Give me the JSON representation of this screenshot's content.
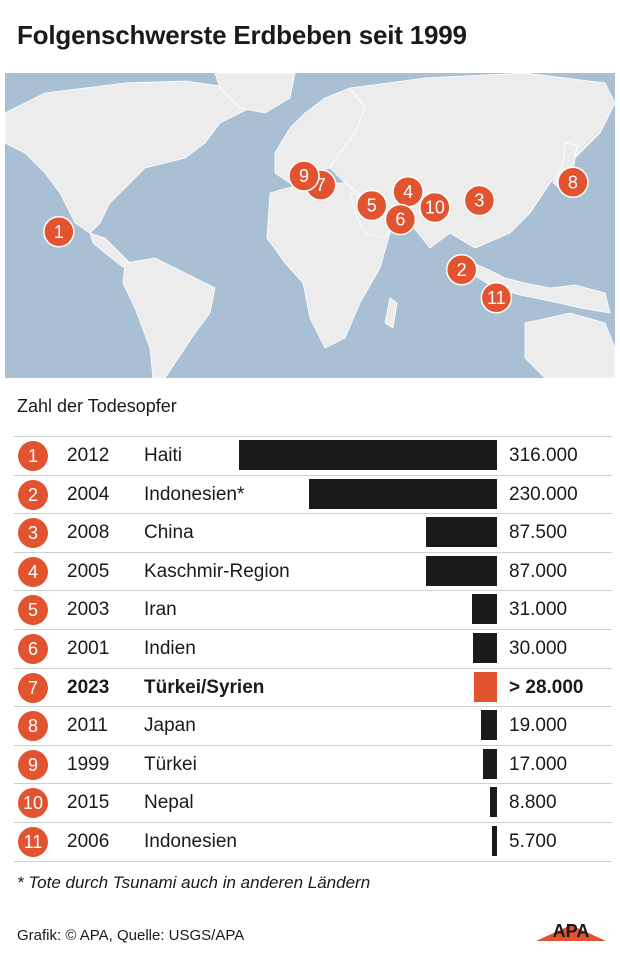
{
  "title": "Folgenschwerste Erdbeben seit 1999",
  "subtitle": "Zahl der Todesopfer",
  "footnote": "* Tote durch Tsunami auch in anderen Ländern",
  "source": "Grafik: © APA, Quelle: USGS/APA",
  "logo_text": "APA",
  "colors": {
    "accent": "#e2532f",
    "bar": "#1a1a1a",
    "ocean": "#a9bfd3",
    "land": "#ececec"
  },
  "chart_data": {
    "type": "bar",
    "orientation": "horizontal",
    "title": "Folgenschwerste Erdbeben seit 1999",
    "subtitle": "Zahl der Todesopfer",
    "xlim": [
      0,
      316000
    ],
    "rows": [
      {
        "rank": "1",
        "year": "2012",
        "name": "Haiti",
        "value": 316000,
        "label": "316.000",
        "highlight": false
      },
      {
        "rank": "2",
        "year": "2004",
        "name": "Indonesien*",
        "value": 230000,
        "label": "230.000",
        "highlight": false
      },
      {
        "rank": "3",
        "year": "2008",
        "name": "China",
        "value": 87500,
        "label": "87.500",
        "highlight": false
      },
      {
        "rank": "4",
        "year": "2005",
        "name": "Kaschmir-Region",
        "value": 87000,
        "label": "87.000",
        "highlight": false
      },
      {
        "rank": "5",
        "year": "2003",
        "name": "Iran",
        "value": 31000,
        "label": "31.000",
        "highlight": false
      },
      {
        "rank": "6",
        "year": "2001",
        "name": "Indien",
        "value": 30000,
        "label": "30.000",
        "highlight": false
      },
      {
        "rank": "7",
        "year": "2023",
        "name": "Türkei/Syrien",
        "value": 28000,
        "label": "> 28.000",
        "highlight": true
      },
      {
        "rank": "8",
        "year": "2011",
        "name": "Japan",
        "value": 19000,
        "label": "19.000",
        "highlight": false
      },
      {
        "rank": "9",
        "year": "1999",
        "name": "Türkei",
        "value": 17000,
        "label": "17.000",
        "highlight": false
      },
      {
        "rank": "10",
        "year": "2015",
        "name": "Nepal",
        "value": 8800,
        "label": "8.800",
        "highlight": false
      },
      {
        "rank": "11",
        "year": "2006",
        "name": "Indonesien",
        "value": 5700,
        "label": "5.700",
        "highlight": false
      }
    ]
  },
  "map": {
    "markers": [
      {
        "rank": "1",
        "lon": -72.5,
        "lat": 18.5
      },
      {
        "rank": "2",
        "lon": 95.9,
        "lat": 3.3
      },
      {
        "rank": "3",
        "lon": 103.3,
        "lat": 31.0
      },
      {
        "rank": "4",
        "lon": 73.5,
        "lat": 34.5
      },
      {
        "rank": "5",
        "lon": 58.3,
        "lat": 29.0
      },
      {
        "rank": "6",
        "lon": 70.3,
        "lat": 23.4
      },
      {
        "rank": "7",
        "lon": 37.0,
        "lat": 37.2
      },
      {
        "rank": "8",
        "lon": 142.4,
        "lat": 38.3
      },
      {
        "rank": "9",
        "lon": 30.0,
        "lat": 40.8
      },
      {
        "rank": "10",
        "lon": 84.7,
        "lat": 28.2
      },
      {
        "rank": "11",
        "lon": 110.4,
        "lat": -7.9
      }
    ]
  }
}
